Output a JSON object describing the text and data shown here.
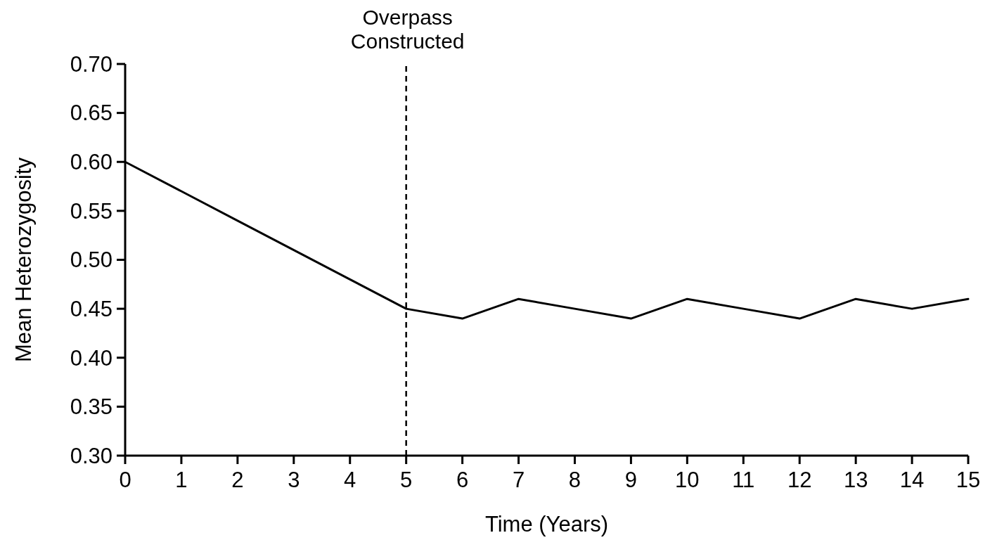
{
  "chart_data": {
    "type": "line",
    "xlabel": "Time (Years)",
    "ylabel": "Mean Heterozygosity",
    "x": [
      0,
      1,
      2,
      3,
      4,
      5,
      6,
      7,
      8,
      9,
      10,
      11,
      12,
      13,
      14,
      15
    ],
    "series": [
      {
        "color": "#000000",
        "values": [
          0.6,
          0.57,
          0.54,
          0.51,
          0.48,
          0.45,
          0.44,
          0.46,
          0.45,
          0.44,
          0.46,
          0.45,
          0.44,
          0.46,
          0.45,
          0.46
        ]
      }
    ],
    "xlim": [
      0,
      15
    ],
    "xticks": [
      0,
      1,
      2,
      3,
      4,
      5,
      6,
      7,
      8,
      9,
      10,
      11,
      12,
      13,
      14,
      15
    ],
    "ylim": [
      0.3,
      0.7
    ],
    "yticks": [
      {
        "value": 0.3,
        "label": "0.30"
      },
      {
        "value": 0.35,
        "label": "0.35"
      },
      {
        "value": 0.4,
        "label": "0.40"
      },
      {
        "value": 0.45,
        "label": "0.45"
      },
      {
        "value": 0.5,
        "label": "0.50"
      },
      {
        "value": 0.55,
        "label": "0.55"
      },
      {
        "value": 0.6,
        "label": "0.60"
      },
      {
        "value": 0.65,
        "label": "0.65"
      },
      {
        "value": 0.7,
        "label": "0.70"
      }
    ],
    "ref_lines": [
      {
        "axis": "x",
        "value": 5,
        "label": "Overpass Constructed",
        "color": "#000000",
        "line_style": "dashed"
      }
    ],
    "marker": "none",
    "line_style": "solid",
    "grid": false
  }
}
